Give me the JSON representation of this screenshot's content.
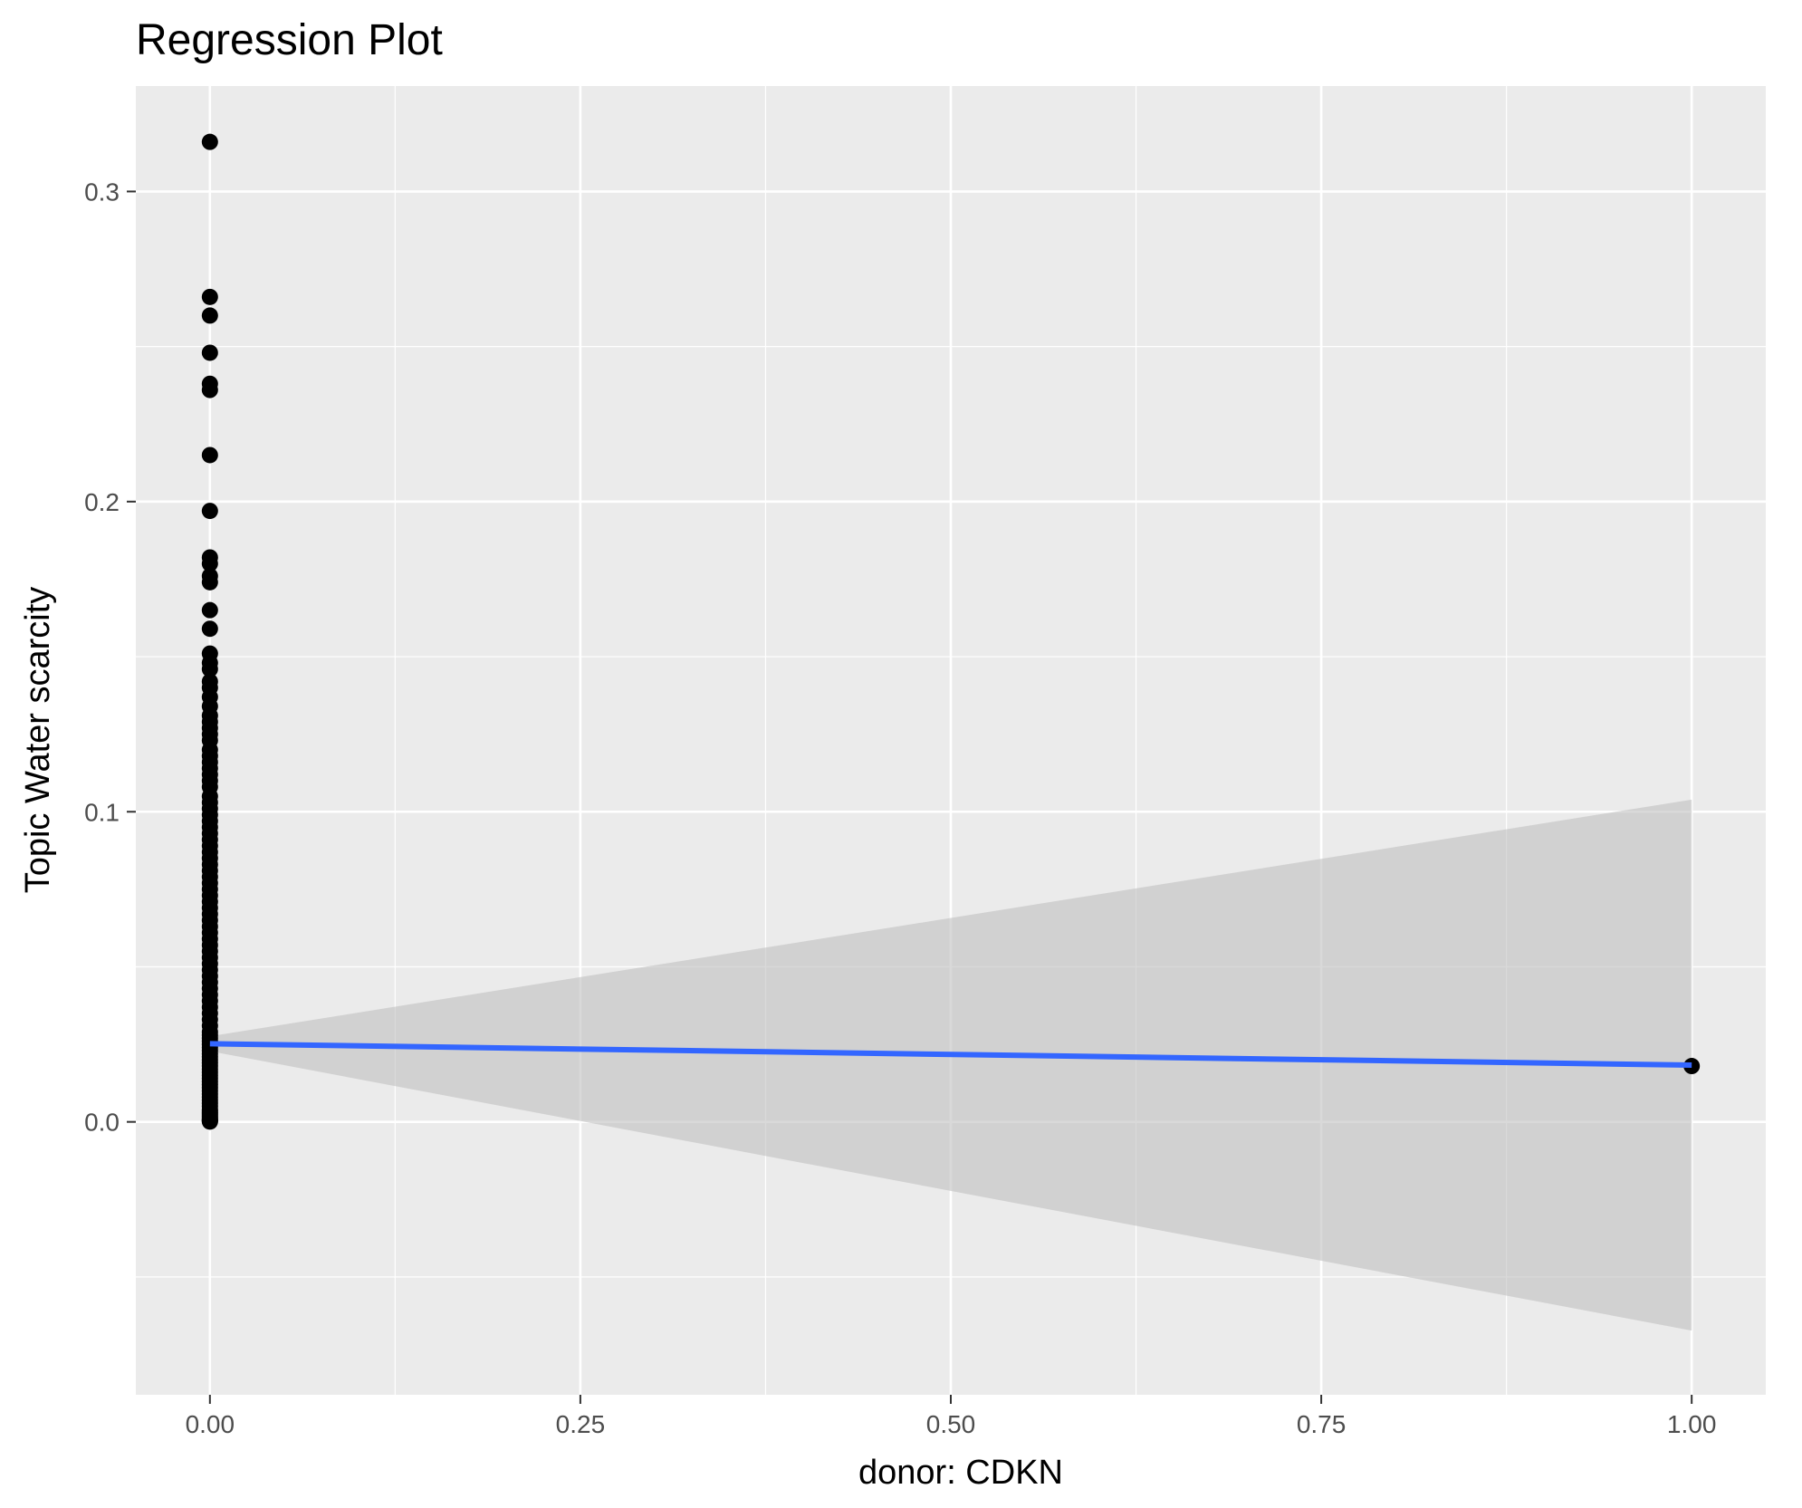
{
  "chart_data": {
    "type": "scatter",
    "title": "Regression Plot",
    "xlabel": "donor: CDKN",
    "ylabel": "Topic Water scarcity",
    "xlim": [
      -0.05,
      1.05
    ],
    "ylim": [
      -0.088,
      0.334
    ],
    "x_ticks": [
      0.0,
      0.25,
      0.5,
      0.75,
      1.0
    ],
    "x_tick_labels": [
      "0.00",
      "0.25",
      "0.50",
      "0.75",
      "1.00"
    ],
    "y_ticks": [
      0.0,
      0.1,
      0.2,
      0.3
    ],
    "y_tick_labels": [
      "0.0",
      "0.1",
      "0.2",
      "0.3"
    ],
    "grid": true,
    "legend": "none",
    "colors": {
      "panel": "#ebebeb",
      "grid": "#ffffff",
      "points": "#000000",
      "fit_line": "#3366ff",
      "ribbon": "#bfbfbf"
    },
    "points": {
      "x": [
        0,
        0,
        0,
        0,
        0,
        0,
        0,
        0,
        0,
        0,
        0,
        0,
        0,
        0,
        0,
        0,
        0,
        0,
        0,
        0,
        0,
        0,
        0,
        0,
        0,
        0,
        0,
        0,
        0,
        0,
        0,
        0,
        0,
        0,
        0,
        0,
        0,
        0,
        0,
        0,
        0,
        0,
        0,
        0,
        0,
        0,
        0,
        0,
        0,
        0,
        0,
        0,
        0,
        0,
        0,
        0,
        0,
        0,
        0,
        0,
        0,
        0,
        0,
        0,
        0,
        0,
        0,
        0,
        0,
        0,
        0,
        0,
        0,
        0,
        0,
        0,
        0,
        0,
        0,
        0,
        0,
        0,
        0,
        0,
        0,
        0,
        0,
        0,
        0,
        0,
        0,
        0,
        0,
        0,
        0,
        0,
        0,
        0,
        0,
        0,
        0,
        0,
        0,
        0,
        0,
        0,
        0,
        1
      ],
      "y": [
        0.316,
        0.266,
        0.26,
        0.248,
        0.238,
        0.236,
        0.215,
        0.197,
        0.182,
        0.18,
        0.176,
        0.174,
        0.165,
        0.159,
        0.151,
        0.148,
        0.146,
        0.142,
        0.14,
        0.137,
        0.134,
        0.131,
        0.129,
        0.127,
        0.125,
        0.123,
        0.12,
        0.118,
        0.116,
        0.114,
        0.112,
        0.11,
        0.108,
        0.105,
        0.103,
        0.101,
        0.099,
        0.097,
        0.095,
        0.093,
        0.091,
        0.089,
        0.087,
        0.085,
        0.083,
        0.081,
        0.079,
        0.077,
        0.075,
        0.073,
        0.071,
        0.069,
        0.067,
        0.065,
        0.063,
        0.061,
        0.059,
        0.057,
        0.055,
        0.053,
        0.051,
        0.049,
        0.047,
        0.045,
        0.043,
        0.041,
        0.039,
        0.037,
        0.035,
        0.033,
        0.031,
        0.029,
        0.028,
        0.027,
        0.026,
        0.025,
        0.024,
        0.023,
        0.022,
        0.021,
        0.02,
        0.019,
        0.018,
        0.017,
        0.016,
        0.015,
        0.014,
        0.013,
        0.012,
        0.011,
        0.01,
        0.009,
        0.008,
        0.007,
        0.006,
        0.005,
        0.004,
        0.0035,
        0.003,
        0.0025,
        0.002,
        0.0015,
        0.001,
        0.0007,
        0.0005,
        0.0003,
        0.0001,
        0.018
      ]
    },
    "fit": {
      "x": [
        0,
        1
      ],
      "y": [
        0.0252,
        0.0183
      ],
      "ci_lower": [
        0.0228,
        -0.0673
      ],
      "ci_upper": [
        0.0276,
        0.1039
      ]
    }
  }
}
